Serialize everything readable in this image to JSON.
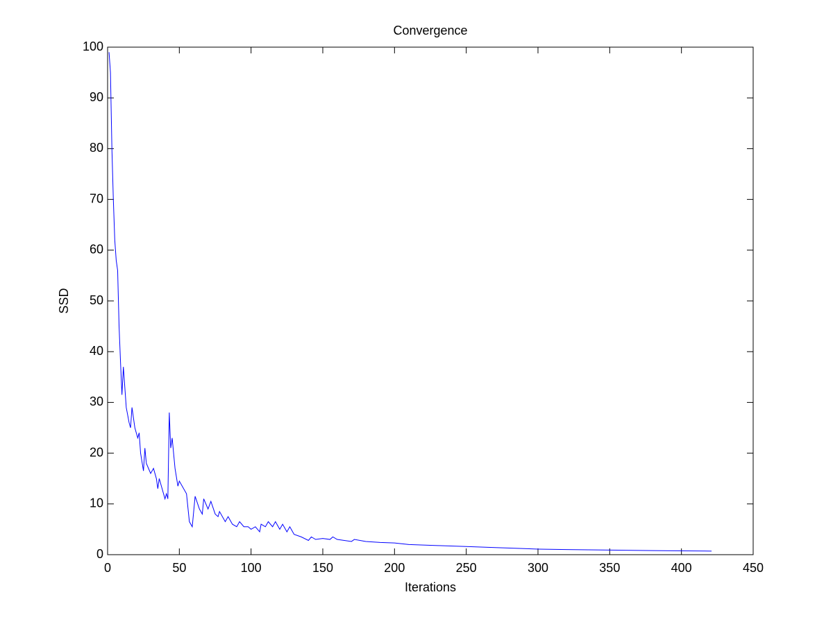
{
  "chart_data": {
    "type": "line",
    "title": "Convergence",
    "x_label": "Iterations",
    "y_label": "SSD",
    "xlim": [
      0,
      450
    ],
    "xticks": [
      0,
      50,
      100,
      150,
      200,
      250,
      300,
      350,
      400,
      450
    ],
    "ylim": [
      0,
      100
    ],
    "yticks": [
      0,
      10,
      20,
      30,
      40,
      50,
      60,
      70,
      80,
      90,
      100
    ],
    "grid": false,
    "x": [
      1,
      2,
      3,
      4,
      5,
      6,
      7,
      8,
      9,
      10,
      11,
      12,
      13,
      15,
      16,
      17,
      19,
      21,
      22,
      23,
      25,
      26,
      27,
      30,
      32,
      34,
      35,
      36,
      38,
      40,
      41,
      42,
      43,
      44,
      45,
      47,
      49,
      50,
      55,
      57,
      59,
      61,
      64,
      66,
      67,
      70,
      72,
      75,
      77,
      78,
      82,
      84,
      87,
      90,
      92,
      95,
      98,
      100,
      103,
      106,
      107,
      110,
      112,
      115,
      117,
      120,
      122,
      125,
      127,
      130,
      135,
      140,
      142,
      145,
      150,
      155,
      157,
      160,
      170,
      172,
      180,
      190,
      200,
      210,
      220,
      230,
      250,
      270,
      300,
      320,
      350,
      380,
      400,
      421
    ],
    "series": [
      {
        "name": "SSD",
        "color": "#0000ff",
        "values": [
          99,
          95,
          80,
          70,
          62,
          58,
          56,
          45,
          38,
          31.5,
          37,
          33,
          29,
          26,
          25,
          29,
          25,
          23,
          24,
          20,
          16.5,
          21,
          18,
          16,
          17,
          15,
          13,
          15,
          13,
          11,
          12,
          11,
          28,
          21,
          23,
          17,
          13.5,
          14.5,
          12,
          6.5,
          5.5,
          11.5,
          9,
          8,
          11,
          9,
          10.5,
          8,
          7.5,
          8.5,
          6.5,
          7.5,
          6,
          5.5,
          6.5,
          5.5,
          5.5,
          5,
          5.5,
          4.5,
          6,
          5.5,
          6.5,
          5.5,
          6.5,
          5,
          6,
          4.5,
          5.5,
          4,
          3.5,
          2.8,
          3.5,
          3,
          3.2,
          3,
          3.5,
          3,
          2.6,
          3,
          2.6,
          2.4,
          2.3,
          2,
          1.9,
          1.8,
          1.6,
          1.4,
          1.1,
          1.0,
          0.9,
          0.8,
          0.75,
          0.7
        ]
      }
    ]
  }
}
